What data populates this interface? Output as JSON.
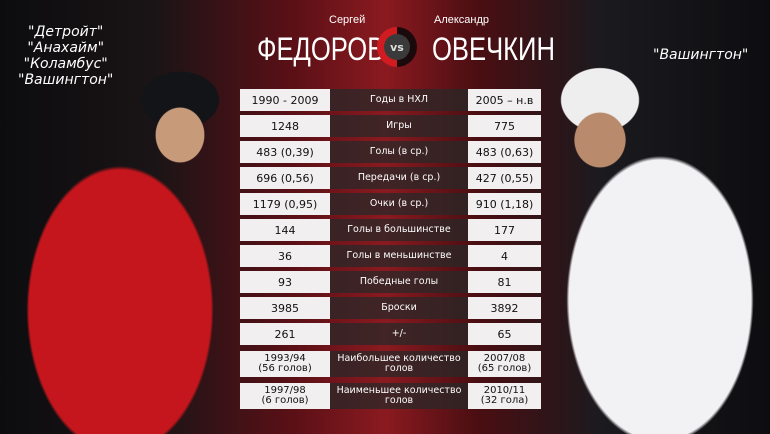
{
  "left_player": {
    "first_name": "Сергей",
    "last_name": "ФЕДОРОВ",
    "teams": [
      "\"Детройт\"",
      "\"Анахайм\"",
      "\"Коламбус\"",
      "\"Вашингтон\""
    ]
  },
  "right_player": {
    "first_name": "Александр",
    "last_name": "ОВЕЧКИН",
    "teams": [
      "\"Вашингтон\""
    ]
  },
  "vs_label": "vs",
  "colors": {
    "accent": "#d01c20",
    "cell": "#f1efef"
  },
  "rows": [
    {
      "left": "1990 - 2009",
      "stat": "Годы в НХЛ",
      "right": "2005 – н.в"
    },
    {
      "left": "1248",
      "stat": "Игры",
      "right": "775"
    },
    {
      "left": "483 (0,39)",
      "stat": "Голы (в ср.)",
      "right": "483 (0,63)"
    },
    {
      "left": "696 (0,56)",
      "stat": "Передачи (в ср.)",
      "right": "427 (0,55)"
    },
    {
      "left": "1179 (0,95)",
      "stat": "Очки (в ср.)",
      "right": "910 (1,18)"
    },
    {
      "left": "144",
      "stat": "Голы в большинстве",
      "right": "177"
    },
    {
      "left": "36",
      "stat": "Голы в меньшинстве",
      "right": "4"
    },
    {
      "left": "93",
      "stat": "Победные голы",
      "right": "81"
    },
    {
      "left": "3985",
      "stat": "Броски",
      "right": "3892"
    },
    {
      "left": "261",
      "stat": "+/-",
      "right": "65"
    },
    {
      "left": "1993/94\n(56 голов)",
      "stat": "Наибольшее количество голов",
      "right": "2007/08\n(65 голов)"
    },
    {
      "left": "1997/98\n(6 голов)",
      "stat": "Наименьшее количество голов",
      "right": "2010/11\n(32 гола)"
    }
  ]
}
